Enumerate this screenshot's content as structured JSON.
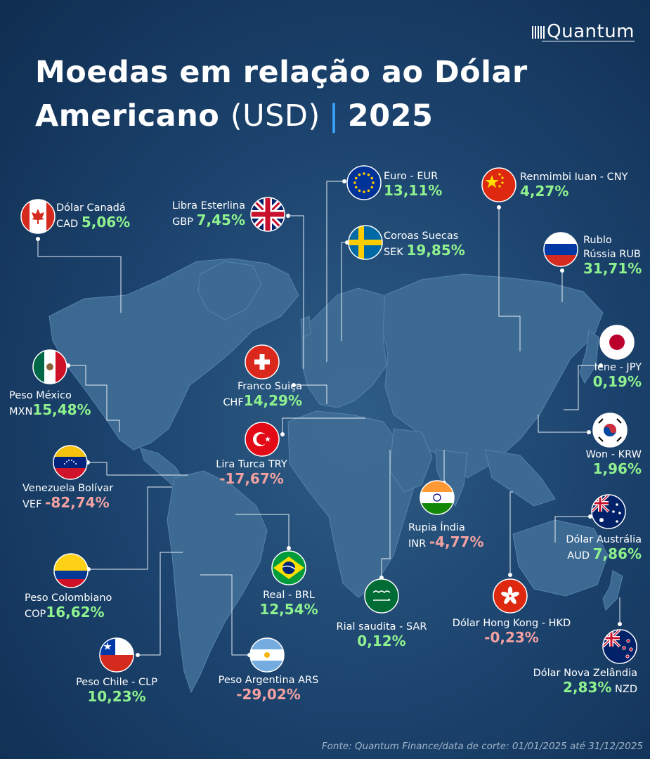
{
  "brand": "Quantum",
  "title": {
    "line1": "Moedas em relação ao Dólar",
    "bold2": "Americano",
    "light2": "(USD)",
    "separator": "|",
    "year": "2025"
  },
  "currencies": [
    {
      "l1": "Dólar Canadá",
      "l2": "CAD",
      "value": "5,06%",
      "flag": "canada-flag-icon"
    },
    {
      "l1": "Libra Esterlina",
      "l2": "GBP",
      "value": "7,45%",
      "flag": "uk-flag-icon"
    },
    {
      "l1": "Euro - EUR",
      "value": "13,11%",
      "flag": "eu-flag-icon"
    },
    {
      "l1": "Coroas Suecas",
      "l2": "SEK",
      "value": "19,85%",
      "flag": "sweden-flag-icon"
    },
    {
      "l1": "Renmimbi Iuan - CNY",
      "value": "4,27%",
      "flag": "china-flag-icon"
    },
    {
      "l1": "Rublo",
      "l2": "Rússia RUB",
      "value": "31,71%",
      "flag": "russia-flag-icon"
    },
    {
      "l1": "Peso México",
      "l2": "MXN",
      "value": "15,48%",
      "flag": "mexico-flag-icon"
    },
    {
      "l1": "Franco Suiça",
      "l2": "CHF",
      "value": "14,29%",
      "flag": "switzerland-flag-icon"
    },
    {
      "l1": "Iene - JPY",
      "value": "0,19%",
      "flag": "japan-flag-icon"
    },
    {
      "l1": "Lira Turca TRY",
      "value": "-17,67%",
      "flag": "turkey-flag-icon"
    },
    {
      "l1": "Won - KRW",
      "value": "1,96%",
      "flag": "korea-flag-icon"
    },
    {
      "l1": "Venezuela Bolívar",
      "l2": "VEF",
      "value": "-82,74%",
      "flag": "venezuela-flag-icon"
    },
    {
      "l1": "Rupia Índia",
      "l2": "INR",
      "value": "-4,77%",
      "flag": "india-flag-icon"
    },
    {
      "l1": "Dólar Austrália",
      "l2": "AUD",
      "value": "7,86%",
      "flag": "australia-flag-icon"
    },
    {
      "l1": "Real - BRL",
      "value": "12,54%",
      "flag": "brazil-flag-icon"
    },
    {
      "l1": "Peso Colombiano",
      "l2": "COP",
      "value": "16,62%",
      "flag": "colombia-flag-icon"
    },
    {
      "l1": "Rial saudita - SAR",
      "value": "0,12%",
      "flag": "saudi-flag-icon"
    },
    {
      "l1": "Dólar Hong Kong - HKD",
      "value": "-0,23%",
      "flag": "hongkong-flag-icon"
    },
    {
      "l1": "Dólar Nova Zelândia",
      "l2": "NZD",
      "value": "2,83%",
      "flag": "newzealand-flag-icon"
    },
    {
      "l1": "Peso Chile - CLP",
      "value": "10,23%",
      "flag": "chile-flag-icon"
    },
    {
      "l1": "Peso Argentina ARS",
      "value": "-29,02%",
      "flag": "argentina-flag-icon"
    }
  ],
  "source": "Fonte: Quantum Finance/data de corte: 01/01/2025 até 31/12/2025"
}
